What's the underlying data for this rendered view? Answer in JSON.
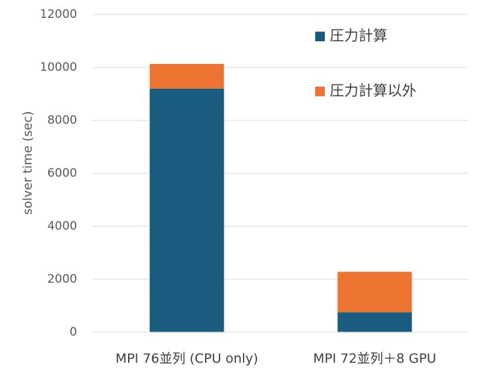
{
  "chart_data": {
    "type": "bar",
    "stacked": true,
    "categories": [
      "MPI 76並列 (CPU only)",
      "MPI 72並列＋8 GPU"
    ],
    "series": [
      {
        "name": "圧力計算",
        "color": "#1a5c80",
        "values": [
          9200,
          750
        ]
      },
      {
        "name": "圧力計算以外",
        "color": "#ed7430",
        "values": [
          930,
          1530
        ]
      }
    ],
    "ylabel": "solver time (sec)",
    "ylim": [
      0,
      12000
    ],
    "yticks": [
      0,
      2000,
      4000,
      6000,
      8000,
      10000,
      12000
    ],
    "grid": true,
    "legend_position": "top-right"
  }
}
